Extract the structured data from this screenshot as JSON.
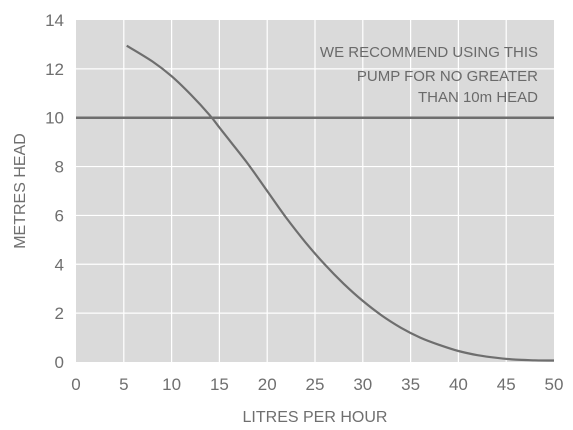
{
  "chart_data": {
    "type": "line",
    "xlabel": "LITRES PER HOUR",
    "ylabel": "METRES HEAD",
    "xlim": [
      0,
      50
    ],
    "ylim": [
      0,
      14
    ],
    "x_ticks": [
      0,
      5,
      10,
      15,
      20,
      25,
      30,
      35,
      40,
      45,
      50
    ],
    "y_ticks": [
      0,
      2,
      4,
      6,
      8,
      10,
      12,
      14
    ],
    "grid": true,
    "series": [
      {
        "x": [
          5.3,
          8,
          10,
          12,
          14,
          15,
          16,
          18,
          20,
          22,
          24,
          26,
          28,
          30,
          32,
          34,
          36,
          38,
          40,
          42,
          44,
          46,
          48,
          50
        ],
        "y": [
          12.95,
          12.3,
          11.7,
          10.95,
          10.1,
          9.6,
          9.1,
          8.1,
          7.0,
          5.9,
          4.9,
          4.0,
          3.2,
          2.5,
          1.9,
          1.4,
          1.0,
          0.7,
          0.45,
          0.28,
          0.17,
          0.1,
          0.07,
          0.06
        ]
      }
    ],
    "reference_line": {
      "y": 10
    },
    "annotation": {
      "lines": [
        "WE RECOMMEND USING THIS",
        "PUMP FOR NO GREATER",
        "THAN 10m HEAD"
      ]
    },
    "colors": {
      "plot_background": "#dadada",
      "grid": "#ffffff",
      "line": "#6e6e6e",
      "text": "#6f6f6f"
    }
  }
}
